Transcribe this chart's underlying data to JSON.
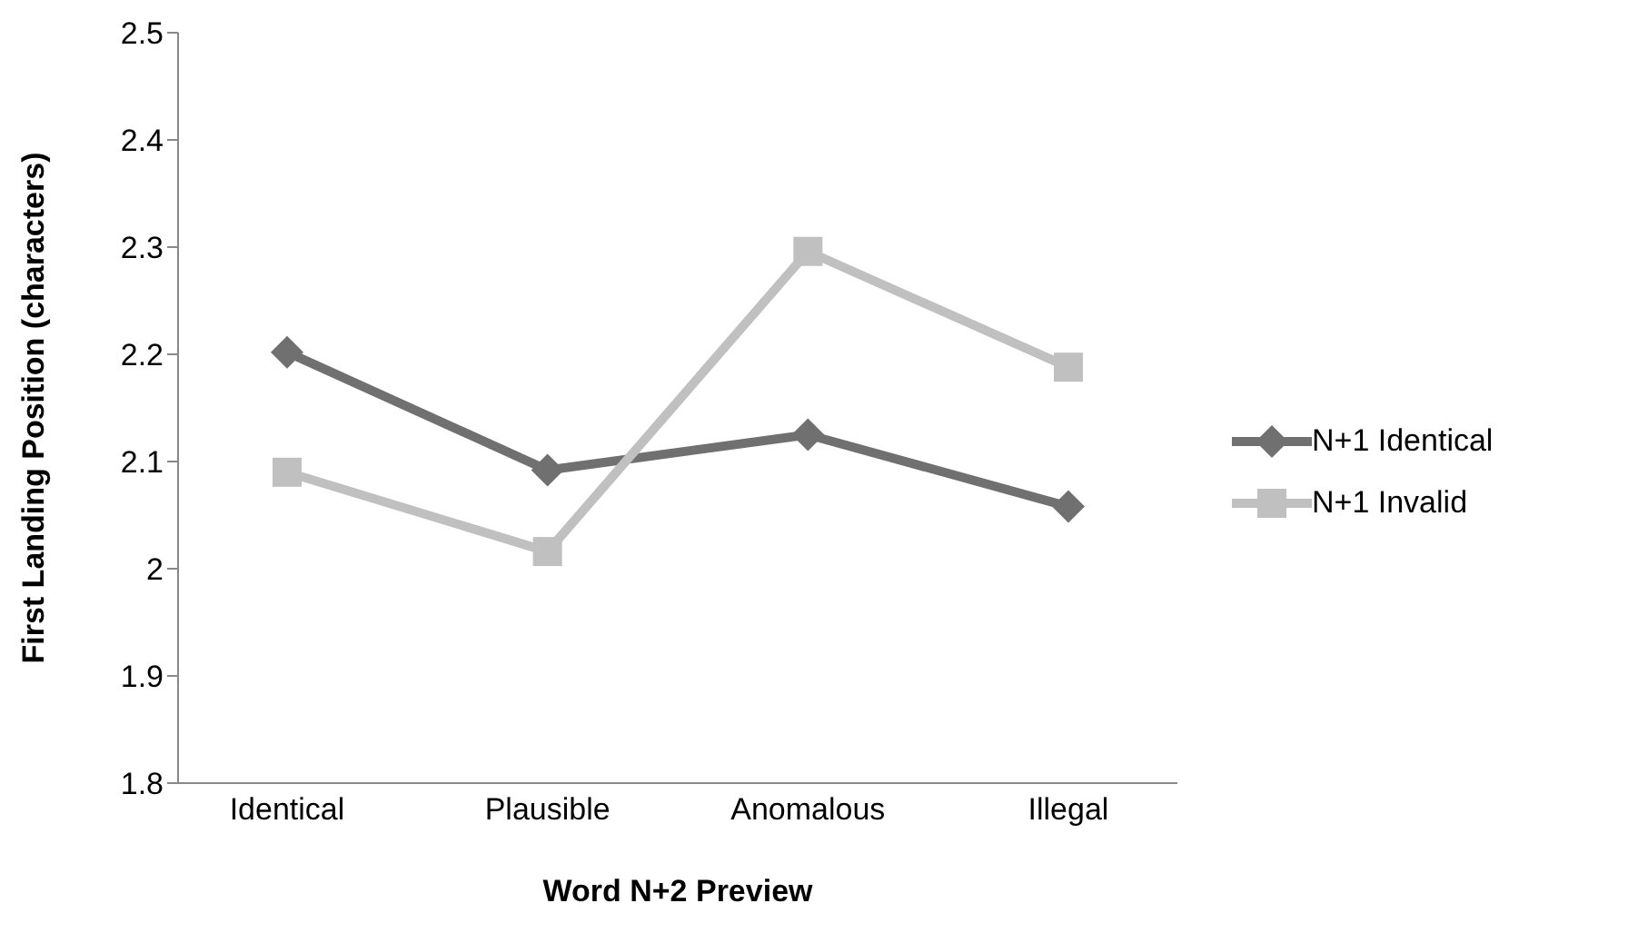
{
  "chart_data": {
    "type": "line",
    "xlabel": "Word N+2 Preview",
    "ylabel": "First Landing Position (characters)",
    "categories": [
      "Identical",
      "Plausible",
      "Anomalous",
      "Illegal"
    ],
    "series": [
      {
        "name": "N+1 Identical",
        "color": "#707070",
        "values": [
          2.202,
          2.092,
          2.125,
          2.058
        ],
        "marker": "diamond"
      },
      {
        "name": "N+1 Invalid",
        "color": "#c0c0c0",
        "values": [
          2.09,
          2.016,
          2.296,
          2.188
        ],
        "marker": "square"
      }
    ],
    "ylim": [
      1.8,
      2.5
    ],
    "yticks": [
      1.8,
      1.9,
      2,
      2.1,
      2.2,
      2.3,
      2.4,
      2.5
    ],
    "grid": false,
    "legend": "right"
  }
}
